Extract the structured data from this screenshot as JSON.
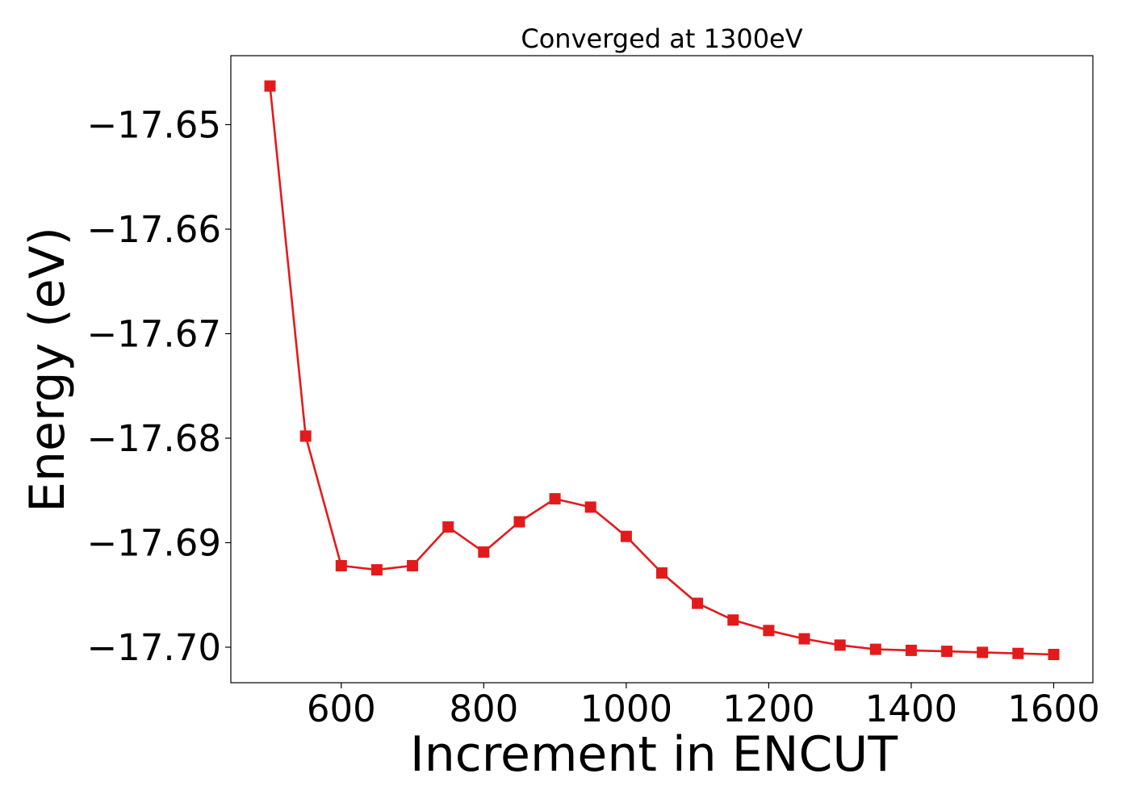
{
  "chart_data": {
    "type": "line",
    "title": "Converged at 1300eV",
    "xlabel": "Increment in ENCUT",
    "ylabel": "Energy (eV)",
    "xlim": [
      445,
      1655
    ],
    "ylim": [
      -17.7034,
      -17.6434
    ],
    "xticks": [
      600,
      800,
      1000,
      1200,
      1400,
      1600
    ],
    "xtick_labels": [
      "600",
      "800",
      "1000",
      "1200",
      "1400",
      "1600"
    ],
    "yticks": [
      -17.65,
      -17.66,
      -17.67,
      -17.68,
      -17.69,
      -17.7
    ],
    "ytick_labels": [
      "−17.65",
      "−17.66",
      "−17.67",
      "−17.68",
      "−17.69",
      "−17.70"
    ],
    "grid": false,
    "legend": "none",
    "series": [
      {
        "color": "#e31a1c",
        "marker": "square",
        "x": [
          500,
          550,
          600,
          650,
          700,
          750,
          800,
          850,
          900,
          950,
          1000,
          1050,
          1100,
          1150,
          1200,
          1250,
          1300,
          1350,
          1400,
          1450,
          1500,
          1550,
          1600
        ],
        "y": [
          -17.6463,
          -17.6798,
          -17.6922,
          -17.6926,
          -17.6922,
          -17.6885,
          -17.6909,
          -17.688,
          -17.6858,
          -17.6866,
          -17.6894,
          -17.6929,
          -17.6958,
          -17.6974,
          -17.6984,
          -17.6992,
          -17.6998,
          -17.7002,
          -17.7003,
          -17.7004,
          -17.7005,
          -17.7006,
          -17.7007
        ]
      }
    ]
  }
}
